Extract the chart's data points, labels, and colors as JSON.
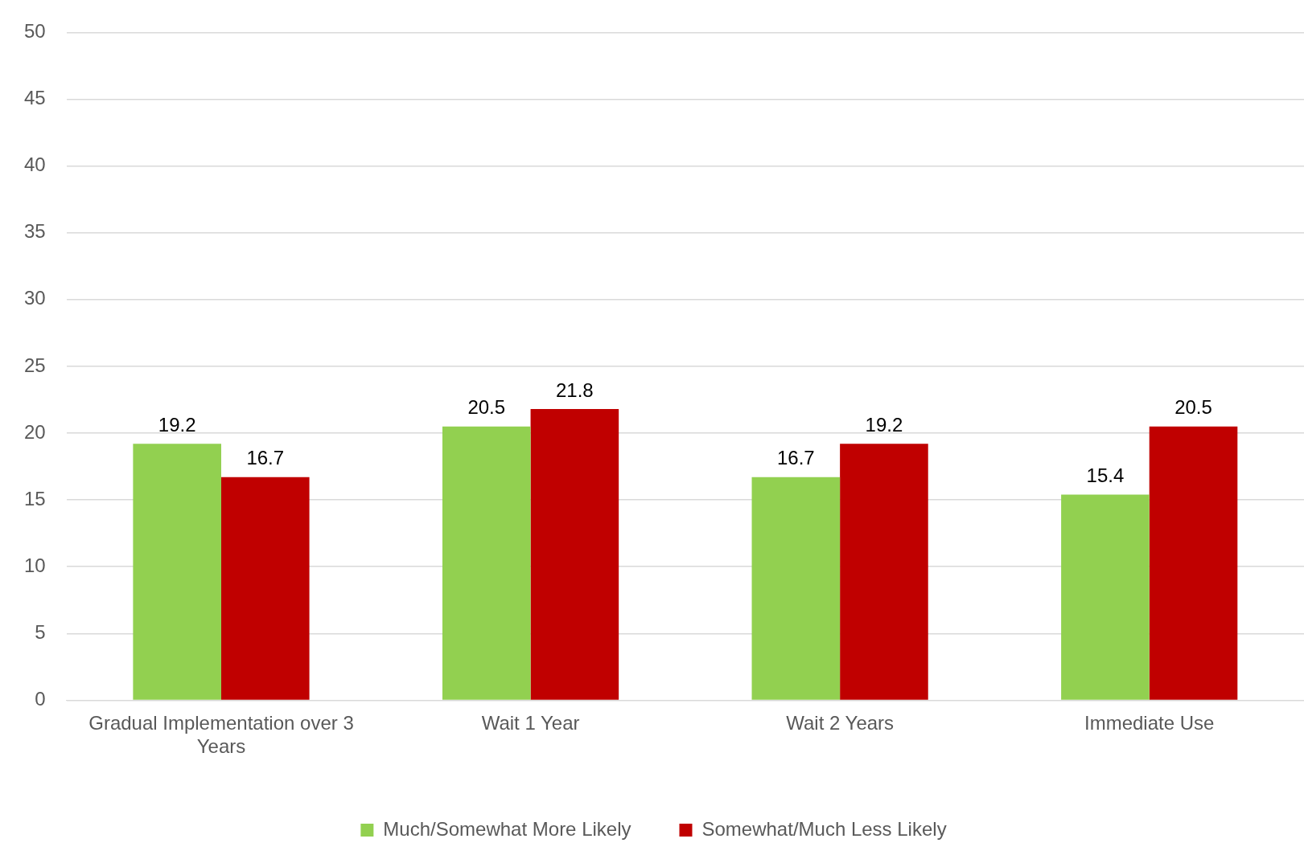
{
  "chart_data": {
    "type": "bar",
    "categories": [
      "Gradual Implementation over 3 Years",
      "Wait 1 Year",
      "Wait 2 Years",
      "Immediate Use"
    ],
    "series": [
      {
        "name": "Much/Somewhat More Likely",
        "color": "#92d050",
        "values": [
          19.2,
          20.5,
          16.7,
          15.4
        ]
      },
      {
        "name": "Somewhat/Much Less Likely",
        "color": "#c00000",
        "values": [
          16.7,
          21.8,
          19.2,
          20.5
        ]
      }
    ],
    "ylim": [
      0,
      50
    ],
    "yticks": [
      0,
      5,
      10,
      15,
      20,
      25,
      30,
      35,
      40,
      45,
      50
    ],
    "grid": "y",
    "legend": "bottom",
    "data_labels": true
  }
}
